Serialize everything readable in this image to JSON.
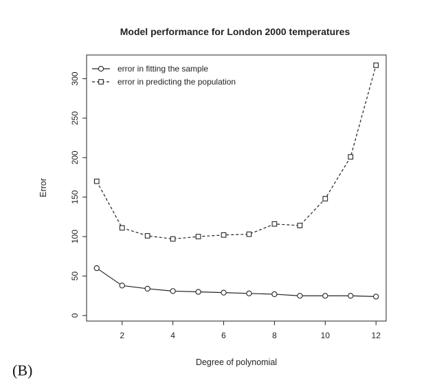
{
  "panel_label": "(B)",
  "chart_data": {
    "type": "line",
    "title": "Model performance for London 2000 temperatures",
    "xlabel": "Degree of polynomial",
    "ylabel": "Error",
    "x": [
      1,
      2,
      3,
      4,
      5,
      6,
      7,
      8,
      9,
      10,
      11,
      12
    ],
    "xticks": [
      2,
      4,
      6,
      8,
      10,
      12
    ],
    "yticks": [
      0,
      50,
      100,
      150,
      200,
      250,
      300
    ],
    "xlim": [
      0.6,
      12.4
    ],
    "ylim": [
      -7,
      330
    ],
    "grid": false,
    "legend_position": "top-left",
    "series": [
      {
        "name": "error in fitting the sample",
        "line_style": "solid",
        "marker": "circle",
        "values": [
          60,
          38,
          34,
          31,
          30,
          29,
          28,
          27,
          25,
          25,
          25,
          24
        ]
      },
      {
        "name": "error in predicting the population",
        "line_style": "dashed",
        "marker": "square",
        "values": [
          170,
          111,
          101,
          97,
          100,
          102,
          103,
          116,
          114,
          148,
          201,
          317
        ]
      }
    ]
  }
}
